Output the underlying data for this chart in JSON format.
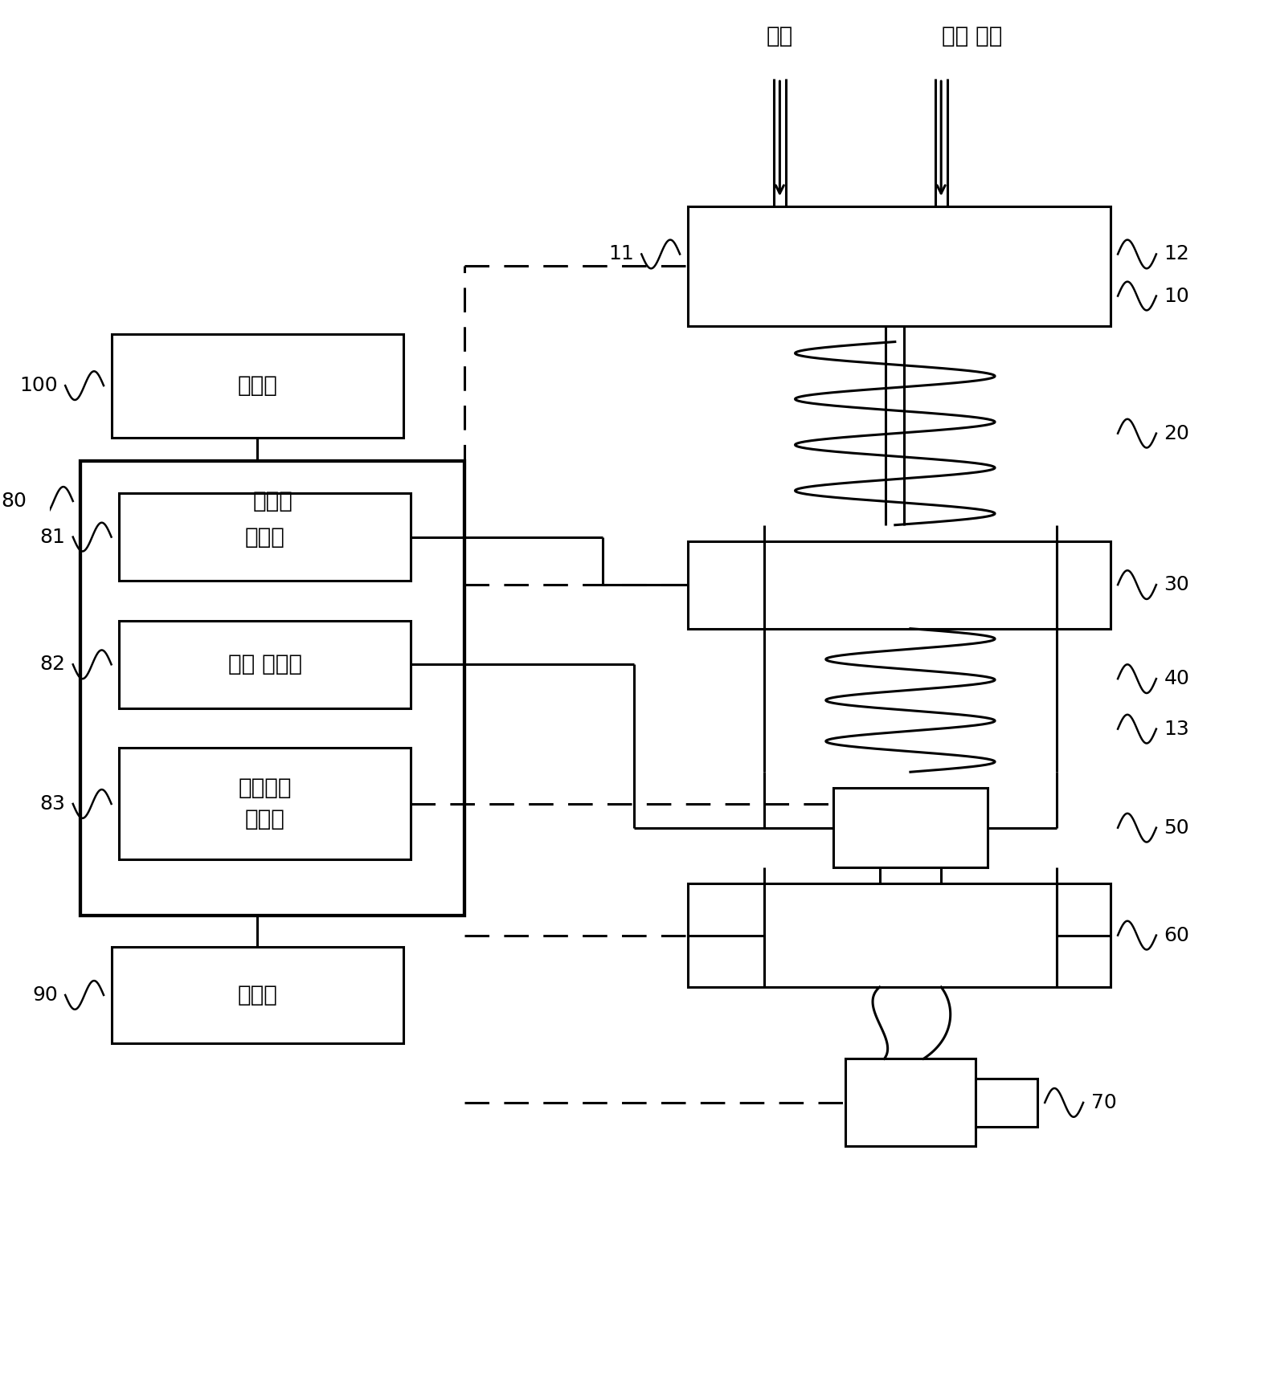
{
  "bg_color": "#ffffff",
  "line_color": "#000000",
  "lw": 2.2,
  "fig_w": 15.73,
  "fig_h": 17.32,
  "labels": {
    "gas": "가스",
    "air": "운반 에어",
    "n10": "10",
    "n11": "11",
    "n12": "12",
    "n13": "13",
    "n20": "20",
    "n30": "30",
    "n40": "40",
    "n50": "50",
    "n60": "60",
    "n70": "70",
    "n80": "80",
    "n81": "81",
    "n82": "82",
    "n83": "83",
    "n90": "90",
    "n100": "100",
    "chewoboo": "제어부",
    "jeonwonbu": "전원부",
    "pandanbu": "판단부",
    "sensor": "센서 구동부",
    "hardware": "하드웨어\n제어부",
    "display": "표시부"
  }
}
